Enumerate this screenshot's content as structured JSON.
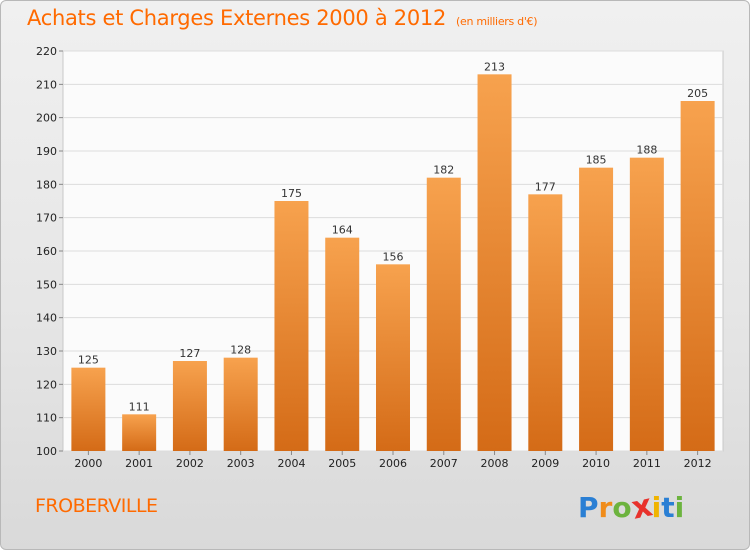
{
  "title": "Achats et Charges Externes 2000 à 2012",
  "unit": "(en milliers d'€)",
  "town": "FROBERVILLE",
  "logo": {
    "letters": [
      "P",
      "r",
      "o",
      "x",
      "i",
      "t",
      "i"
    ],
    "colors": [
      "#2a7fd4",
      "#f08c1a",
      "#6cb33e",
      "#e8322c",
      "#f0b400",
      "#2a7fd4",
      "#6cb33e"
    ]
  },
  "colors": {
    "accent": "#ff6a00",
    "bar_top": "#f7a24e",
    "bar_bottom": "#d46b17"
  },
  "chart_data": {
    "type": "bar",
    "categories": [
      "2000",
      "2001",
      "2002",
      "2003",
      "2004",
      "2005",
      "2006",
      "2007",
      "2008",
      "2009",
      "2010",
      "2011",
      "2012"
    ],
    "values": [
      125,
      111,
      127,
      128,
      175,
      164,
      156,
      182,
      213,
      177,
      185,
      188,
      205
    ],
    "title": "Achats et Charges Externes 2000 à 2012",
    "subtitle": "(en milliers d'€)",
    "xlabel": "",
    "ylabel": "",
    "ylim": [
      100,
      220
    ],
    "yticks": [
      100,
      110,
      120,
      130,
      140,
      150,
      160,
      170,
      180,
      190,
      200,
      210,
      220
    ],
    "grid": true,
    "legend": "none"
  }
}
